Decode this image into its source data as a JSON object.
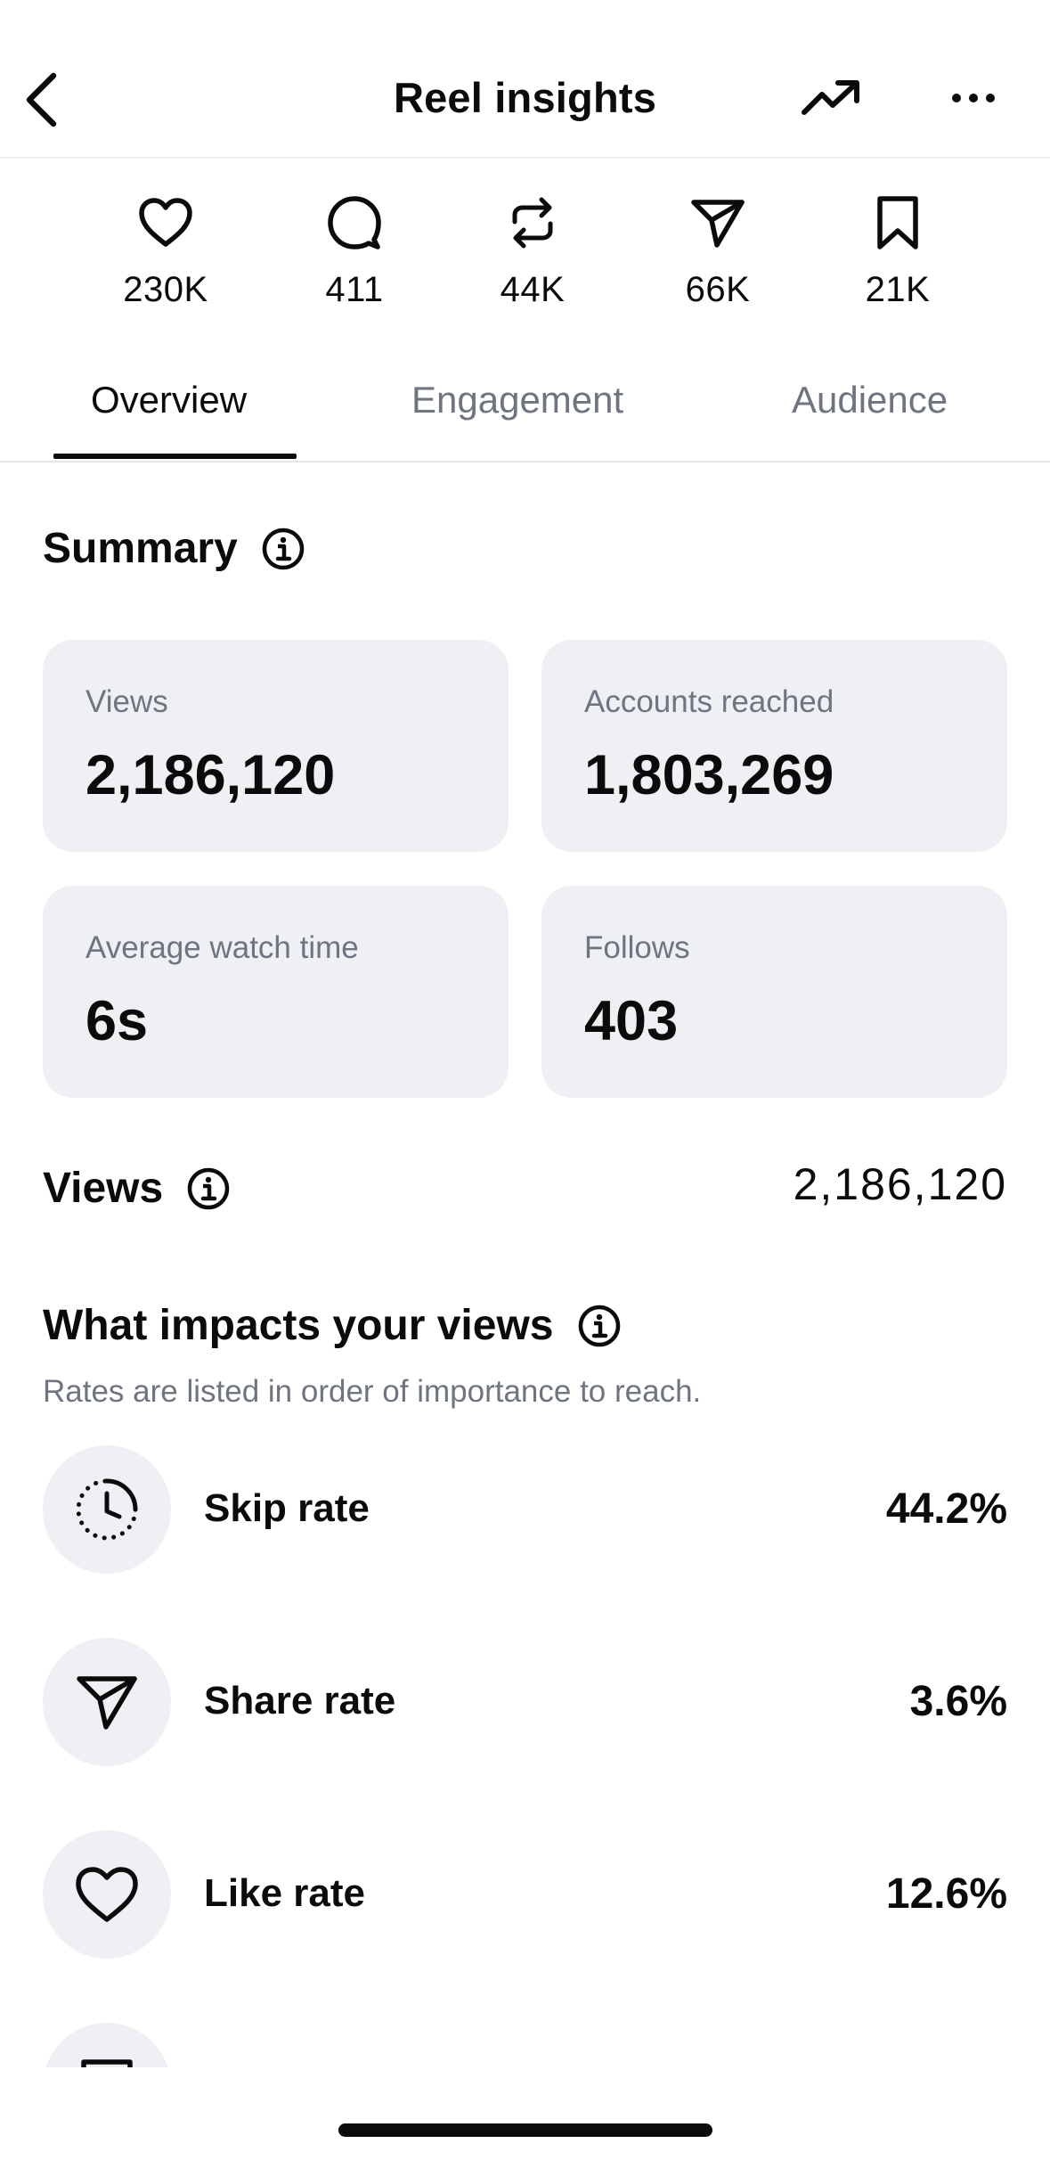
{
  "header": {
    "title": "Reel insights",
    "back_icon": "chevron-left-icon",
    "trend_icon": "trending-up-icon",
    "more_icon": "ellipsis-icon"
  },
  "stats": [
    {
      "icon": "heart-icon",
      "value": "230K"
    },
    {
      "icon": "comment-icon",
      "value": "411"
    },
    {
      "icon": "repost-icon",
      "value": "44K"
    },
    {
      "icon": "send-icon",
      "value": "66K"
    },
    {
      "icon": "bookmark-icon",
      "value": "21K"
    }
  ],
  "tabs": [
    "Overview",
    "Engagement",
    "Audience"
  ],
  "active_tab": "Overview",
  "summary": {
    "title": "Summary",
    "cards": [
      {
        "label": "Views",
        "value": "2,186,120"
      },
      {
        "label": "Accounts reached",
        "value": "1,803,269"
      },
      {
        "label": "Average watch time",
        "value": "6s"
      },
      {
        "label": "Follows",
        "value": "403"
      }
    ]
  },
  "views": {
    "title": "Views",
    "total": "2,186,120"
  },
  "impacts": {
    "title": "What impacts your views",
    "subtitle": "Rates are listed in order of importance to reach.",
    "rates": [
      {
        "icon": "clock-icon",
        "label": "Skip rate",
        "value": "44.2%"
      },
      {
        "icon": "send-icon",
        "label": "Share rate",
        "value": "3.6%"
      },
      {
        "icon": "heart-icon",
        "label": "Like rate",
        "value": "12.6%"
      }
    ]
  },
  "colors": {
    "text": "#0b0b0b",
    "secondary": "#6e7480",
    "card_bg": "#eff0f4"
  }
}
